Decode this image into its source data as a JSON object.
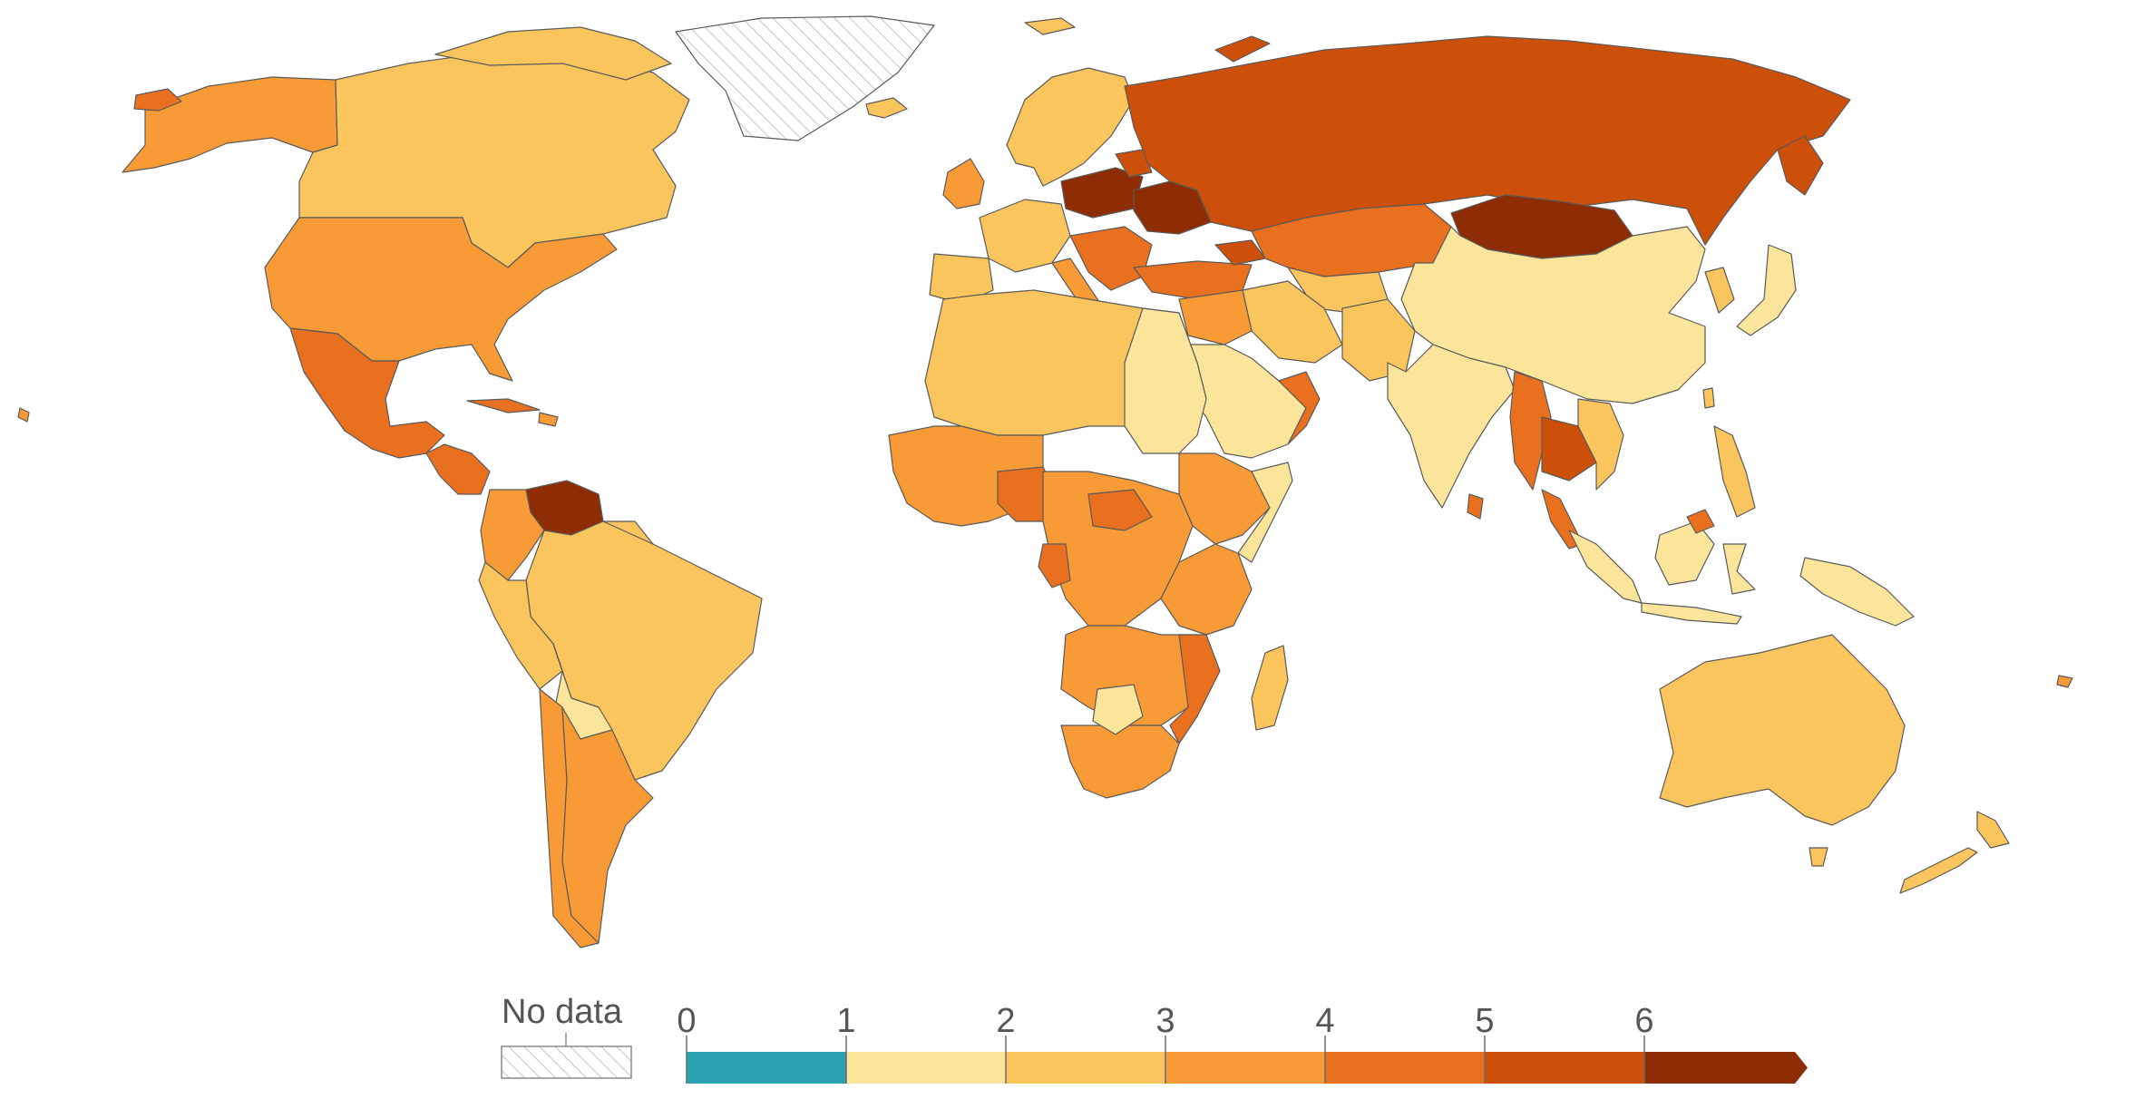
{
  "legend": {
    "no_data_label": "No data",
    "tick_labels": [
      "0",
      "1",
      "2",
      "3",
      "4",
      "5",
      "6"
    ],
    "bin_colors": [
      "#2aa2b1",
      "#fbe59a",
      "#fbc55d",
      "#f89a35",
      "#e8701f",
      "#cc4f0a",
      "#8e2c04"
    ],
    "overflow_arrow": true,
    "no_data_pattern": "diagonal-hatch"
  },
  "colors": {
    "background": "#ffffff",
    "border": "#5a5a5a",
    "no_data_fill": "#ffffff",
    "no_data_hatch": "#bfbfbf"
  }
}
